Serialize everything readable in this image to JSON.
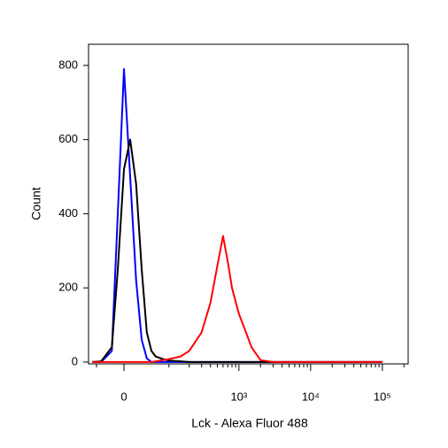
{
  "chart_data": {
    "type": "line",
    "x_label": "Lck - Alexa Fluor 488",
    "y_label": "Count",
    "xscale": "biexponential",
    "x": [
      -60,
      -40,
      -20,
      -10,
      0,
      10,
      20,
      30,
      40,
      50,
      60,
      80,
      100,
      150,
      200,
      300,
      400,
      500,
      600,
      700,
      800,
      1000,
      1200,
      1500,
      2000,
      3000,
      5000,
      10000,
      100000
    ],
    "series": [
      {
        "color": "#0000ff",
        "values": [
          0,
          0,
          30,
          400,
          790,
          500,
          220,
          60,
          10,
          0,
          0,
          0,
          0,
          0,
          0,
          0,
          0,
          0,
          0,
          0,
          0,
          0,
          0,
          0,
          0,
          0,
          0,
          0,
          0
        ]
      },
      {
        "color": "#000000",
        "values": [
          0,
          2,
          40,
          250,
          520,
          600,
          480,
          250,
          80,
          30,
          15,
          8,
          4,
          2,
          0,
          0,
          0,
          0,
          0,
          0,
          0,
          0,
          0,
          0,
          0,
          0,
          0,
          0,
          0
        ]
      },
      {
        "color": "#ff0000",
        "values": [
          0,
          0,
          0,
          0,
          0,
          0,
          0,
          0,
          0,
          0,
          2,
          5,
          8,
          15,
          30,
          80,
          160,
          260,
          340,
          270,
          200,
          130,
          90,
          40,
          5,
          0,
          0,
          0,
          0
        ]
      }
    ],
    "xlim": [
      -70,
      229000
    ],
    "xticks": [
      0,
      {
        "value": 1000,
        "label": "10³"
      },
      {
        "value": 10000,
        "label": "10⁴"
      },
      {
        "value": 100000,
        "label": "10⁵"
      }
    ],
    "xminorticks": [
      -50,
      100,
      200,
      300,
      400,
      500,
      600,
      700,
      800,
      900,
      2000,
      3000,
      4000,
      5000,
      6000,
      7000,
      8000,
      9000,
      20000,
      30000,
      40000,
      50000,
      60000,
      70000,
      80000,
      90000,
      200000
    ],
    "ylim": [
      -5,
      857
    ],
    "yticks": [
      0,
      200,
      400,
      600,
      800
    ]
  }
}
